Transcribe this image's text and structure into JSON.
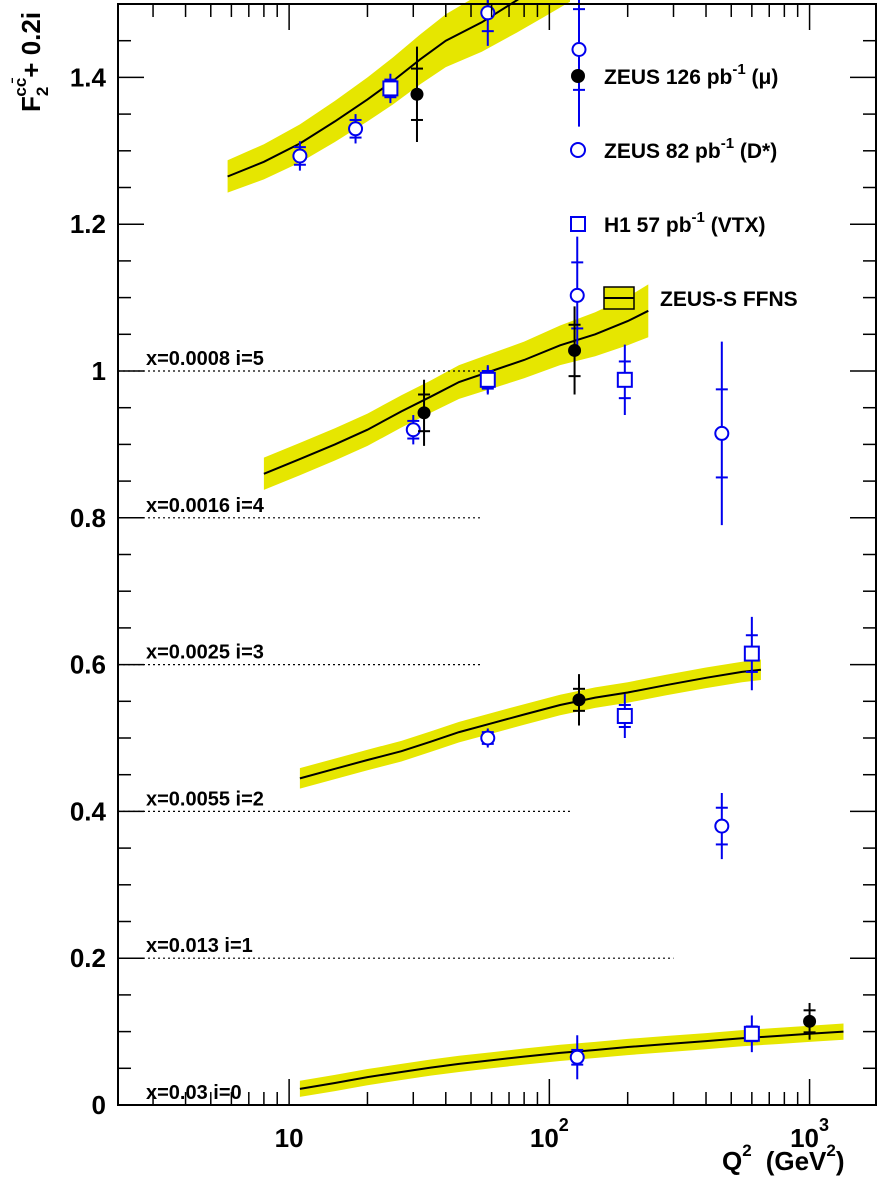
{
  "chart_data": {
    "type": "scatter",
    "x_scale": "log",
    "xlim": [
      2.2,
      1800
    ],
    "ylim": [
      0,
      1.5
    ],
    "xlabel": {
      "main": "Q",
      "sup": "2",
      "unit_pre": "(GeV",
      "unit_sup": "2",
      "unit_post": ")"
    },
    "ylabel": {
      "main": "F",
      "sub": "2",
      "sup": "cc̄",
      "suffix": "+ 0.2i"
    },
    "x_tick_labels": [
      {
        "value": 10,
        "base": "10",
        "exp": ""
      },
      {
        "value": 100,
        "base": "10",
        "exp": "2"
      },
      {
        "value": 1000,
        "base": "10",
        "exp": "3"
      }
    ],
    "y_tick_labels": [
      {
        "value": 0,
        "label": "0"
      },
      {
        "value": 0.2,
        "label": "0.2"
      },
      {
        "value": 0.4,
        "label": "0.4"
      },
      {
        "value": 0.6,
        "label": "0.6"
      },
      {
        "value": 0.8,
        "label": "0.8"
      },
      {
        "value": 1.0,
        "label": "1"
      },
      {
        "value": 1.2,
        "label": "1.2"
      },
      {
        "value": 1.4,
        "label": "1.4"
      }
    ],
    "legend_position": "top-right",
    "legend": [
      {
        "marker": "filled-circle",
        "color": "#000000",
        "text": "ZEUS 126 pb",
        "sup": "-1",
        "tail": " (μ)"
      },
      {
        "marker": "open-circle",
        "color": "#0000ee",
        "text": "ZEUS 82 pb",
        "sup": "-1",
        "tail": " (D*)"
      },
      {
        "marker": "open-square",
        "color": "#0000ee",
        "text": "H1 57 pb",
        "sup": "-1",
        "tail": " (VTX)"
      },
      {
        "marker": "band",
        "color": "#e6e600",
        "text": "ZEUS-S FFNS",
        "sup": "",
        "tail": ""
      }
    ],
    "bins": [
      {
        "label": "x=0.0008 i=5",
        "offset": 1.0,
        "ref_xmax": 55,
        "theory": {
          "x": [
            2.9,
            4,
            5.5,
            8,
            11,
            15,
            20,
            28,
            36,
            45
          ],
          "y": [
            1.045,
            1.065,
            1.09,
            1.13,
            1.175,
            1.225,
            1.27,
            1.315,
            1.35,
            1.385
          ],
          "err": [
            0.025,
            0.028,
            0.032,
            0.038,
            0.045,
            0.052,
            0.058,
            0.065,
            0.072,
            0.08
          ]
        },
        "zeus_mu": [
          {
            "x": 28,
            "y": 1.32,
            "e1": 0.045,
            "e2": 0.08
          }
        ],
        "zeus_dstar": [
          {
            "x": 4.2,
            "y": 1.075,
            "e1": 0.012,
            "e2": 0.02
          },
          {
            "x": 11,
            "y": 1.19,
            "e1": 0.012,
            "e2": 0.02
          },
          {
            "x": 29.5,
            "y": 1.395,
            "e1": 0.03,
            "e2": 0.045
          }
        ],
        "h1": [
          {
            "x": 11.6,
            "y": 1.185,
            "e1": 0.012,
            "e2": 0.02
          },
          {
            "x": 24.5,
            "y": 1.258,
            "e1": 0.015,
            "e2": 0.028
          }
        ]
      },
      {
        "label": "x=0.0016 i=4",
        "offset": 0.8,
        "ref_xmax": 55,
        "theory": {
          "x": [
            4.5,
            6,
            8,
            11,
            15,
            20,
            28,
            36,
            50,
            70,
            90
          ],
          "y": [
            0.85,
            0.87,
            0.895,
            0.93,
            0.97,
            1.005,
            1.05,
            1.085,
            1.12,
            1.155,
            1.185
          ],
          "err": [
            0.022,
            0.024,
            0.026,
            0.03,
            0.035,
            0.04,
            0.045,
            0.05,
            0.055,
            0.06,
            0.065
          ]
        },
        "zeus_mu": [
          {
            "x": 30,
            "y": 1.02,
            "e1": 0.04,
            "e2": 0.075
          },
          {
            "x": 120,
            "y": 0.898,
            "e1": 0.05,
            "e2": 0.09
          }
        ],
        "zeus_dstar": [
          {
            "x": 7.2,
            "y": 0.873,
            "e1": 0.012,
            "e2": 0.02
          },
          {
            "x": 18,
            "y": 0.988,
            "e1": 0.012,
            "e2": 0.02
          },
          {
            "x": 30,
            "y": 1.058,
            "e1": 0.015,
            "e2": 0.025
          },
          {
            "x": 58,
            "y": 1.093,
            "e1": 0.045,
            "e2": 0.095
          }
        ],
        "h1": []
      },
      {
        "label": "x=0.0025  i=3",
        "offset": 0.6,
        "ref_xmax": 55,
        "theory": {
          "x": [
            5.8,
            8,
            11,
            15,
            20,
            25,
            32,
            40,
            55,
            75,
            95,
            120
          ],
          "y": [
            0.665,
            0.685,
            0.71,
            0.74,
            0.77,
            0.795,
            0.825,
            0.85,
            0.875,
            0.905,
            0.93,
            0.955
          ],
          "err": [
            0.022,
            0.024,
            0.026,
            0.028,
            0.03,
            0.032,
            0.034,
            0.036,
            0.04,
            0.044,
            0.048,
            0.052
          ]
        },
        "zeus_mu": [
          {
            "x": 31,
            "y": 0.777,
            "e1": 0.035,
            "e2": 0.065
          }
        ],
        "zeus_dstar": [
          {
            "x": 11,
            "y": 0.693,
            "e1": 0.012,
            "e2": 0.02
          },
          {
            "x": 18,
            "y": 0.73,
            "e1": 0.012,
            "e2": 0.02
          },
          {
            "x": 58,
            "y": 0.888,
            "e1": 0.025,
            "e2": 0.045
          },
          {
            "x": 130,
            "y": 0.838,
            "e1": 0.055,
            "e2": 0.105
          }
        ],
        "h1": [
          {
            "x": 24.5,
            "y": 0.785,
            "e1": 0.012,
            "e2": 0.02
          },
          {
            "x": 58,
            "y": 0.923,
            "e1": 0.015,
            "e2": 0.025
          }
        ]
      },
      {
        "label": "x=0.0055  i=2",
        "offset": 0.4,
        "ref_xmax": 120,
        "theory": {
          "x": [
            8,
            11,
            15,
            20,
            27,
            35,
            45,
            60,
            80,
            110,
            150,
            200,
            240
          ],
          "y": [
            0.46,
            0.48,
            0.5,
            0.52,
            0.545,
            0.565,
            0.585,
            0.6,
            0.615,
            0.635,
            0.65,
            0.668,
            0.682
          ],
          "err": [
            0.022,
            0.022,
            0.022,
            0.022,
            0.022,
            0.022,
            0.023,
            0.024,
            0.025,
            0.027,
            0.03,
            0.033,
            0.036
          ]
        },
        "zeus_mu": [
          {
            "x": 33,
            "y": 0.543,
            "e1": 0.025,
            "e2": 0.045
          },
          {
            "x": 125,
            "y": 0.628,
            "e1": 0.035,
            "e2": 0.06
          }
        ],
        "zeus_dstar": [
          {
            "x": 30,
            "y": 0.52,
            "e1": 0.012,
            "e2": 0.02
          },
          {
            "x": 58,
            "y": 0.588,
            "e1": 0.012,
            "e2": 0.02
          },
          {
            "x": 128,
            "y": 0.703,
            "e1": 0.045,
            "e2": 0.08
          },
          {
            "x": 460,
            "y": 0.515,
            "e1": 0.06,
            "e2": 0.125
          }
        ],
        "h1": [
          {
            "x": 58,
            "y": 0.588,
            "e1": 0.01,
            "e2": 0.018
          },
          {
            "x": 195,
            "y": 0.588,
            "e1": 0.025,
            "e2": 0.048
          }
        ]
      },
      {
        "label": "x=0.013  i=1",
        "offset": 0.2,
        "ref_xmax": 300,
        "theory": {
          "x": [
            11,
            15,
            20,
            27,
            35,
            45,
            60,
            80,
            110,
            150,
            200,
            280,
            400,
            550,
            650
          ],
          "y": [
            0.245,
            0.258,
            0.27,
            0.282,
            0.295,
            0.308,
            0.32,
            0.332,
            0.345,
            0.355,
            0.362,
            0.372,
            0.382,
            0.39,
            0.393
          ],
          "err": [
            0.014,
            0.014,
            0.014,
            0.014,
            0.014,
            0.014,
            0.014,
            0.014,
            0.014,
            0.014,
            0.014,
            0.014,
            0.014,
            0.014,
            0.014
          ]
        },
        "zeus_mu": [
          {
            "x": 130,
            "y": 0.352,
            "e1": 0.015,
            "e2": 0.035
          }
        ],
        "zeus_dstar": [
          {
            "x": 58,
            "y": 0.3,
            "e1": 0.008,
            "e2": 0.013
          },
          {
            "x": 460,
            "y": 0.18,
            "e1": 0.025,
            "e2": 0.045
          }
        ],
        "h1": [
          {
            "x": 195,
            "y": 0.33,
            "e1": 0.015,
            "e2": 0.03
          },
          {
            "x": 600,
            "y": 0.415,
            "e1": 0.025,
            "e2": 0.05
          }
        ]
      },
      {
        "label": "x=0.03  i=0",
        "offset": 0.0,
        "ref_xmax": null,
        "theory": {
          "x": [
            11,
            15,
            20,
            27,
            35,
            45,
            60,
            80,
            110,
            150,
            200,
            280,
            400,
            550,
            750,
            1000,
            1350
          ],
          "y": [
            0.022,
            0.03,
            0.038,
            0.045,
            0.051,
            0.056,
            0.061,
            0.066,
            0.071,
            0.075,
            0.079,
            0.083,
            0.087,
            0.091,
            0.094,
            0.097,
            0.1
          ],
          "err": [
            0.011,
            0.011,
            0.011,
            0.011,
            0.011,
            0.011,
            0.011,
            0.011,
            0.011,
            0.011,
            0.011,
            0.011,
            0.011,
            0.011,
            0.011,
            0.011,
            0.011
          ]
        },
        "zeus_mu": [
          {
            "x": 1000,
            "y": 0.114,
            "e1": 0.015,
            "e2": 0.025
          }
        ],
        "zeus_dstar": [
          {
            "x": 128,
            "y": 0.065,
            "e1": 0.01,
            "e2": 0.03
          }
        ],
        "h1": [
          {
            "x": 600,
            "y": 0.097,
            "e1": 0.01,
            "e2": 0.025
          }
        ]
      }
    ]
  }
}
